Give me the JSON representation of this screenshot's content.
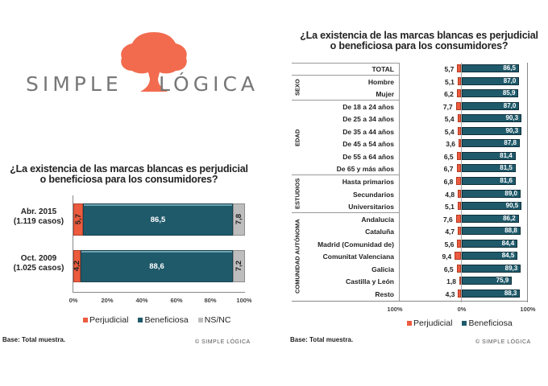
{
  "logo": {
    "left_text": "SIMPLE",
    "right_text": "LÓGICA",
    "tree_color": "#f26b4f"
  },
  "colors": {
    "perjudicial": "#ec5b3e",
    "beneficiosa": "#1f5a6b",
    "nsnc": "#bdbdbd"
  },
  "chart_data": [
    {
      "type": "bar",
      "orientation": "horizontal-stacked-100",
      "title": "¿La existencia de las marcas blancas es perjudicial o beneficiosa para los consumidores?",
      "categories": [
        "Abr. 2015 (1.119 casos)",
        "Oct. 2009 (1.025 casos)"
      ],
      "series": [
        {
          "name": "Perjudicial",
          "values": [
            5.7,
            4.2
          ]
        },
        {
          "name": "Beneficiosa",
          "values": [
            86.5,
            88.6
          ]
        },
        {
          "name": "NS/NC",
          "values": [
            7.8,
            7.2
          ]
        }
      ],
      "xlim": [
        0,
        100
      ],
      "xticks": [
        "0%",
        "20%",
        "40%",
        "60%",
        "80%",
        "100%"
      ],
      "legend_position": "bottom",
      "footnote": "Base: Total muestra."
    },
    {
      "type": "bar",
      "orientation": "horizontal-diverging",
      "title": "¿La existencia de las marcas blancas es perjudicial o beneficiosa para los consumidores?",
      "groups": [
        {
          "name": "",
          "rows": [
            "TOTAL"
          ]
        },
        {
          "name": "SEXO",
          "rows": [
            "Hombre",
            "Mujer"
          ]
        },
        {
          "name": "EDAD",
          "rows": [
            "De 18 a 24 años",
            "De 25 a 34 años",
            "De 35 a 44 años",
            "De 45 a 54 años",
            "De 55 a 64 años",
            "De 65 y más años"
          ]
        },
        {
          "name": "ESTUDIOS",
          "rows": [
            "Hasta primarios",
            "Secundarios",
            "Universitarios"
          ]
        },
        {
          "name": "COMUNIDAD AUTÓNOMA",
          "rows": [
            "Andalucía",
            "Cataluña",
            "Madrid (Comunidad de)",
            "Comunitat Valenciana",
            "Galicia",
            "Castilla y León",
            "Resto"
          ]
        }
      ],
      "categories": [
        "TOTAL",
        "Hombre",
        "Mujer",
        "De 18 a 24 años",
        "De 25 a 34 años",
        "De 35 a 44 años",
        "De 45 a 54 años",
        "De 55 a 64 años",
        "De 65 y más años",
        "Hasta primarios",
        "Secundarios",
        "Universitarios",
        "Andalucía",
        "Cataluña",
        "Madrid (Comunidad de)",
        "Comunitat Valenciana",
        "Galicia",
        "Castilla y León",
        "Resto"
      ],
      "series": [
        {
          "name": "Perjudicial",
          "values": [
            5.7,
            5.1,
            6.2,
            7.7,
            5.4,
            5.4,
            3.6,
            6.5,
            6.7,
            6.8,
            4.8,
            5.1,
            7.6,
            4.7,
            5.6,
            9.4,
            6.5,
            1.8,
            4.3
          ]
        },
        {
          "name": "Beneficiosa",
          "values": [
            86.5,
            87.0,
            85.9,
            87.0,
            90.3,
            90.3,
            87.8,
            81.4,
            81.5,
            81.6,
            89.0,
            90.5,
            86.2,
            88.8,
            84.4,
            84.5,
            89.3,
            75.9,
            88.3
          ]
        }
      ],
      "xlim": [
        -100,
        100
      ],
      "xticks": [
        "100%",
        "0%",
        "100%"
      ],
      "legend_position": "bottom",
      "footnote": "Base: Total muestra."
    }
  ],
  "left_chart": {
    "title_line1": "¿La existencia de las marcas blancas es perjudicial",
    "title_line2": "o beneficiosa para los consumidores?",
    "rows": [
      {
        "label1": "Abr. 2015",
        "label2": "(1.119 casos)",
        "perj": "5,7",
        "bene": "86,5",
        "nsnc": "7,8",
        "p": 5.7,
        "b": 86.5,
        "n": 7.8
      },
      {
        "label1": "Oct. 2009",
        "label2": "(1.025 casos)",
        "perj": "4,2",
        "bene": "88,6",
        "nsnc": "7,2",
        "p": 4.2,
        "b": 88.6,
        "n": 7.2
      }
    ],
    "ticks": [
      "0%",
      "20%",
      "40%",
      "60%",
      "80%",
      "100%"
    ],
    "legend": [
      "Perjudicial",
      "Beneficiosa",
      "NS/NC"
    ],
    "base": "Base: Total muestra.",
    "brand": "© SIMPLE LÓGICA"
  },
  "right_chart": {
    "title_line1": "¿La existencia de las marcas blancas es perjudicial",
    "title_line2": "o beneficiosa para los consumidores?",
    "group_labels": [
      "SEXO",
      "EDAD",
      "ESTUDIOS",
      "COMUNIDAD AUTÓNOMA"
    ],
    "rows": [
      {
        "label": "TOTAL",
        "perj": "5,7",
        "bene": "86,5"
      },
      {
        "label": "Hombre",
        "perj": "5,1",
        "bene": "87,0"
      },
      {
        "label": "Mujer",
        "perj": "6,2",
        "bene": "85,9"
      },
      {
        "label": "De 18 a 24 años",
        "perj": "7,7",
        "bene": "87,0"
      },
      {
        "label": "De 25 a 34 años",
        "perj": "5,4",
        "bene": "90,3"
      },
      {
        "label": "De 35 a 44 años",
        "perj": "5,4",
        "bene": "90,3"
      },
      {
        "label": "De 45 a 54 años",
        "perj": "3,6",
        "bene": "87,8"
      },
      {
        "label": "De 55 a 64 años",
        "perj": "6,5",
        "bene": "81,4"
      },
      {
        "label": "De 65 y más años",
        "perj": "6,7",
        "bene": "81,5"
      },
      {
        "label": "Hasta primarios",
        "perj": "6,8",
        "bene": "81,6"
      },
      {
        "label": "Secundarios",
        "perj": "4,8",
        "bene": "89,0"
      },
      {
        "label": "Universitarios",
        "perj": "5,1",
        "bene": "90,5"
      },
      {
        "label": "Andalucía",
        "perj": "7,6",
        "bene": "86,2"
      },
      {
        "label": "Cataluña",
        "perj": "4,7",
        "bene": "88,8"
      },
      {
        "label": "Madrid (Comunidad de)",
        "perj": "5,6",
        "bene": "84,4"
      },
      {
        "label": "Comunitat Valenciana",
        "perj": "9,4",
        "bene": "84,5"
      },
      {
        "label": "Galicia",
        "perj": "6,5",
        "bene": "89,3"
      },
      {
        "label": "Castilla y León",
        "perj": "1,8",
        "bene": "75,9"
      },
      {
        "label": "Resto",
        "perj": "4,3",
        "bene": "88,3"
      }
    ],
    "ticks": [
      "100%",
      "0%",
      "100%"
    ],
    "legend": [
      "Perjudicial",
      "Beneficiosa"
    ],
    "base": "Base: Total muestra.",
    "brand": "© SIMPLE LÓGICA"
  }
}
